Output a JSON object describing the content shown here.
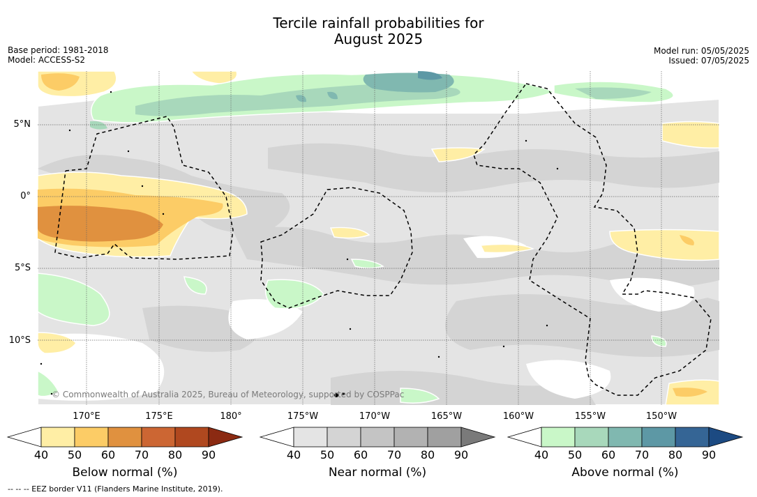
{
  "title_line1": "Tercile rainfall probabilities for",
  "title_line2": "August 2025",
  "base_period": "Base period: 1981-2018",
  "model": "Model: ACCESS-S2",
  "model_run": "Model run: 05/05/2025",
  "issued": "Issued: 07/05/2025",
  "copyright": "© Commonwealth of Australia 2025, Bureau of Meteorology, supported by COSPPac",
  "footnote": "--  --  -- EEZ border V11 (Flanders Marine Institute, 2019).",
  "lat_labels": [
    "5°N",
    "0°",
    "5°S",
    "10°S"
  ],
  "lon_labels": [
    "170°E",
    "175°E",
    "180°",
    "175°W",
    "170°W",
    "165°W",
    "160°W",
    "155°W",
    "150°W"
  ],
  "colorbars": [
    {
      "title": "Below normal (%)",
      "ticks": [
        "40",
        "50",
        "60",
        "70",
        "80",
        "90"
      ],
      "colors": [
        "#ffeea5",
        "#fccc66",
        "#e0913f",
        "#cc6633",
        "#b0481f",
        "#8b2a12"
      ]
    },
    {
      "title": "Near normal (%)",
      "ticks": [
        "40",
        "50",
        "60",
        "70",
        "80",
        "90"
      ],
      "colors": [
        "#e4e4e4",
        "#d4d4d4",
        "#c4c4c4",
        "#b2b2b2",
        "#a0a0a0",
        "#7a7a7a"
      ]
    },
    {
      "title": "Above normal (%)",
      "ticks": [
        "40",
        "50",
        "60",
        "70",
        "80",
        "90"
      ],
      "colors": [
        "#c9f7c8",
        "#a8d8bb",
        "#80b8b0",
        "#5d98a5",
        "#356595",
        "#1c4a82"
      ]
    }
  ]
}
